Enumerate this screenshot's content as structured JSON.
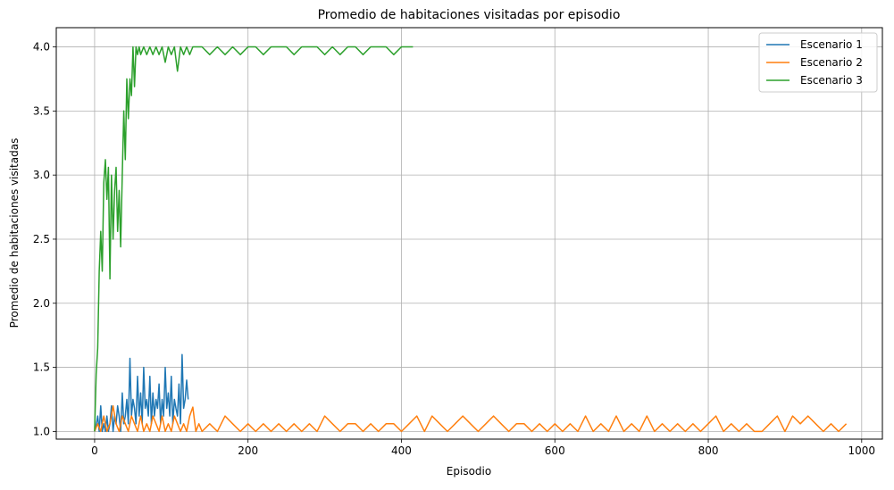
{
  "chart_data": {
    "type": "line",
    "title": "Promedio de habitaciones visitadas por episodio",
    "xlabel": "Episodio",
    "ylabel": "Promedio de habitaciones visitadas",
    "xlim": [
      -50,
      1027
    ],
    "ylim": [
      0.94,
      4.15
    ],
    "xticks": [
      0,
      200,
      400,
      600,
      800,
      1000
    ],
    "xtick_labels": [
      "0",
      "200",
      "400",
      "600",
      "800",
      "1000"
    ],
    "yticks": [
      1.0,
      1.5,
      2.0,
      2.5,
      3.0,
      3.5,
      4.0
    ],
    "ytick_labels": [
      "1.0",
      "1.5",
      "2.0",
      "2.5",
      "3.0",
      "3.5",
      "4.0"
    ],
    "grid": true,
    "legend_position": "top-right",
    "series": [
      {
        "name": "Escenario 1",
        "color": "#1f77b4",
        "x": [
          0,
          2,
          4,
          6,
          8,
          10,
          12,
          14,
          16,
          18,
          20,
          22,
          24,
          26,
          28,
          30,
          32,
          34,
          36,
          38,
          40,
          42,
          44,
          46,
          48,
          50,
          52,
          54,
          56,
          58,
          60,
          62,
          64,
          66,
          68,
          70,
          72,
          74,
          76,
          78,
          80,
          82,
          84,
          86,
          88,
          90,
          92,
          94,
          96,
          98,
          100,
          102,
          104,
          106,
          108,
          110,
          112,
          114,
          116,
          118,
          120,
          122
        ],
        "y": [
          1.0,
          1.05,
          1.12,
          1.0,
          1.2,
          1.0,
          1.06,
          1.0,
          1.12,
          1.0,
          1.06,
          1.2,
          1.0,
          1.12,
          1.06,
          1.2,
          1.12,
          1.0,
          1.3,
          1.06,
          1.12,
          1.25,
          1.06,
          1.57,
          1.12,
          1.25,
          1.18,
          1.06,
          1.43,
          1.12,
          1.3,
          1.06,
          1.5,
          1.18,
          1.25,
          1.12,
          1.43,
          1.06,
          1.3,
          1.12,
          1.25,
          1.18,
          1.37,
          1.06,
          1.25,
          1.12,
          1.5,
          1.18,
          1.3,
          1.12,
          1.43,
          1.06,
          1.25,
          1.18,
          1.12,
          1.37,
          1.06,
          1.6,
          1.18,
          1.25,
          1.4,
          1.25
        ]
      },
      {
        "name": "Escenario 2",
        "color": "#ff7f0e",
        "x": [
          0,
          4,
          8,
          12,
          16,
          20,
          24,
          28,
          32,
          36,
          40,
          44,
          48,
          52,
          56,
          60,
          64,
          68,
          72,
          76,
          80,
          84,
          88,
          92,
          96,
          100,
          104,
          108,
          112,
          116,
          120,
          124,
          128,
          132,
          136,
          140,
          150,
          160,
          170,
          180,
          190,
          200,
          210,
          220,
          230,
          240,
          250,
          260,
          270,
          280,
          290,
          300,
          310,
          320,
          330,
          340,
          350,
          360,
          370,
          380,
          390,
          400,
          410,
          420,
          430,
          440,
          450,
          460,
          470,
          480,
          490,
          500,
          510,
          520,
          530,
          540,
          550,
          560,
          570,
          580,
          590,
          600,
          610,
          620,
          630,
          640,
          650,
          660,
          670,
          680,
          690,
          700,
          710,
          720,
          730,
          740,
          750,
          760,
          770,
          780,
          790,
          800,
          810,
          820,
          830,
          840,
          850,
          860,
          870,
          880,
          890,
          900,
          910,
          920,
          930,
          940,
          950,
          960,
          970,
          980
        ],
        "y": [
          1.0,
          1.06,
          1.0,
          1.12,
          1.0,
          1.06,
          1.2,
          1.06,
          1.0,
          1.12,
          1.06,
          1.0,
          1.12,
          1.06,
          1.0,
          1.12,
          1.0,
          1.06,
          1.0,
          1.12,
          1.06,
          1.0,
          1.12,
          1.0,
          1.06,
          1.0,
          1.12,
          1.06,
          1.0,
          1.06,
          1.0,
          1.12,
          1.19,
          1.0,
          1.06,
          1.0,
          1.06,
          1.0,
          1.12,
          1.06,
          1.0,
          1.06,
          1.0,
          1.06,
          1.0,
          1.06,
          1.0,
          1.06,
          1.0,
          1.06,
          1.0,
          1.12,
          1.06,
          1.0,
          1.06,
          1.06,
          1.0,
          1.06,
          1.0,
          1.06,
          1.06,
          1.0,
          1.06,
          1.12,
          1.0,
          1.12,
          1.06,
          1.0,
          1.06,
          1.12,
          1.06,
          1.0,
          1.06,
          1.12,
          1.06,
          1.0,
          1.06,
          1.06,
          1.0,
          1.06,
          1.0,
          1.06,
          1.0,
          1.06,
          1.0,
          1.12,
          1.0,
          1.06,
          1.0,
          1.12,
          1.0,
          1.06,
          1.0,
          1.12,
          1.0,
          1.06,
          1.0,
          1.06,
          1.0,
          1.06,
          1.0,
          1.06,
          1.12,
          1.0,
          1.06,
          1.0,
          1.06,
          1.0,
          1.0,
          1.06,
          1.12,
          1.0,
          1.12,
          1.06,
          1.12,
          1.06,
          1.0,
          1.06,
          1.0,
          1.06
        ]
      },
      {
        "name": "Escenario 3",
        "color": "#2ca02c",
        "x": [
          0,
          2,
          4,
          6,
          8,
          10,
          12,
          14,
          16,
          18,
          20,
          22,
          24,
          26,
          28,
          30,
          32,
          34,
          36,
          38,
          40,
          42,
          44,
          46,
          48,
          50,
          52,
          54,
          56,
          58,
          60,
          64,
          68,
          72,
          76,
          80,
          84,
          88,
          92,
          96,
          100,
          104,
          108,
          112,
          116,
          120,
          124,
          128,
          132,
          140,
          150,
          160,
          170,
          180,
          190,
          200,
          210,
          220,
          230,
          240,
          250,
          260,
          270,
          280,
          290,
          300,
          310,
          320,
          330,
          340,
          350,
          360,
          370,
          380,
          390,
          400,
          410,
          415
        ],
        "y": [
          1.0,
          1.45,
          1.65,
          2.25,
          2.56,
          2.25,
          2.94,
          3.12,
          2.81,
          3.06,
          2.19,
          3.0,
          2.5,
          2.88,
          3.06,
          2.56,
          2.88,
          2.44,
          3.0,
          3.5,
          3.12,
          3.75,
          3.44,
          3.75,
          3.62,
          4.0,
          3.69,
          4.0,
          3.94,
          4.0,
          3.94,
          4.0,
          3.94,
          4.0,
          3.94,
          4.0,
          3.94,
          4.0,
          3.88,
          4.0,
          3.94,
          4.0,
          3.81,
          4.0,
          3.94,
          4.0,
          3.94,
          4.0,
          4.0,
          4.0,
          3.94,
          4.0,
          3.94,
          4.0,
          3.94,
          4.0,
          4.0,
          3.94,
          4.0,
          4.0,
          4.0,
          3.94,
          4.0,
          4.0,
          4.0,
          3.94,
          4.0,
          3.94,
          4.0,
          4.0,
          3.94,
          4.0,
          4.0,
          4.0,
          3.94,
          4.0,
          4.0,
          4.0
        ]
      }
    ]
  }
}
